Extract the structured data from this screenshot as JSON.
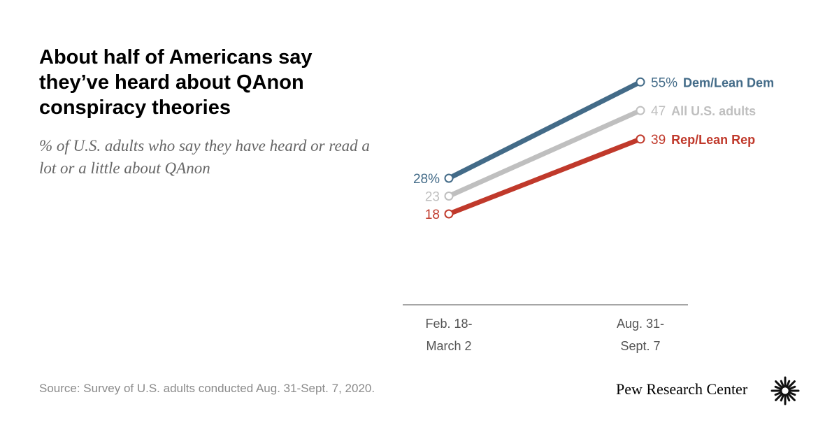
{
  "title": "About half of Americans say they’ve heard about QAnon conspiracy theories",
  "subtitle": "% of U.S. adults who say they have heard or read a lot or a little about QAnon",
  "source": "Source: Survey of U.S. adults conducted Aug. 31-Sept. 7, 2020.",
  "brand": "Pew Research Center",
  "brand_icon": "pew-sunburst-logo-icon",
  "chart_data": {
    "type": "line",
    "title": "About half of Americans say they’ve heard about QAnon conspiracy theories",
    "subtitle": "% of U.S. adults who say they have heard or read a lot or a little about QAnon",
    "x_categories": [
      [
        "Feb. 18-",
        "March 2"
      ],
      [
        "Aug. 31-",
        "Sept. 7"
      ]
    ],
    "series": [
      {
        "id": "all",
        "name": "All U.S. adults",
        "values": [
          23,
          47
        ],
        "labels": [
          "23",
          "47"
        ],
        "color": "#bfbfbf"
      },
      {
        "id": "rep",
        "name": "Rep/Lean Rep",
        "values": [
          18,
          39
        ],
        "labels": [
          "18",
          "39"
        ],
        "color": "#c0392b"
      },
      {
        "id": "dem",
        "name": "Dem/Lean Dem",
        "values": [
          28,
          55
        ],
        "labels": [
          "28%",
          "55%"
        ],
        "color": "#436b88"
      }
    ],
    "grid": false,
    "legend": "direct labels at line ends"
  }
}
